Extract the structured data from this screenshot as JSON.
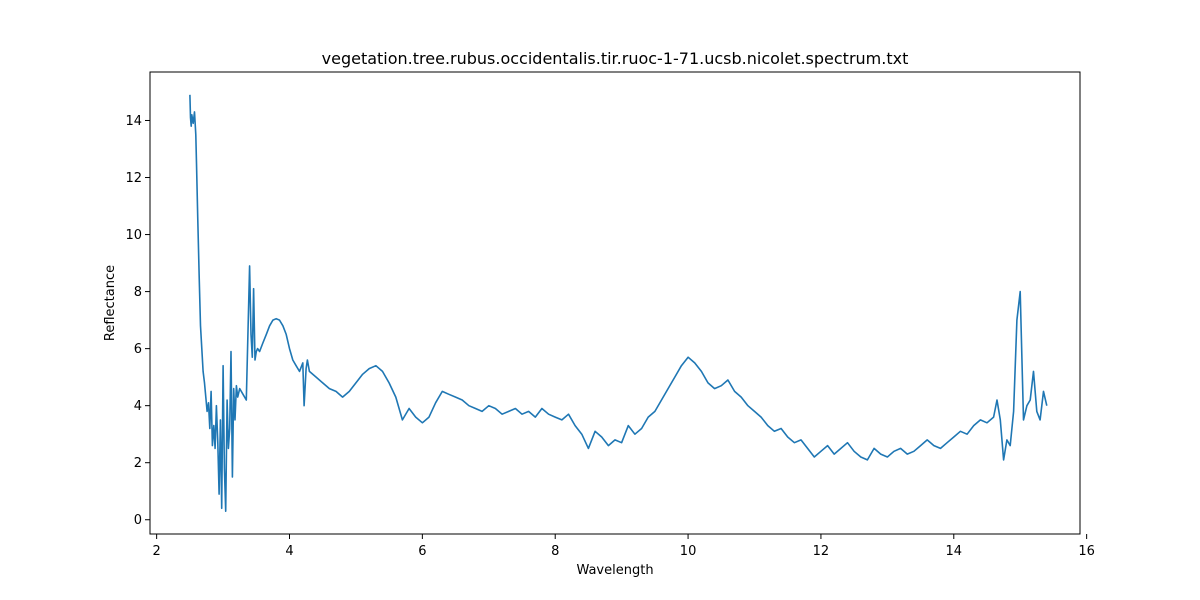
{
  "chart_data": {
    "type": "line",
    "title": "vegetation.tree.rubus.occidentalis.tir.ruoc-1-71.ucsb.nicolet.spectrum.txt",
    "xlabel": "Wavelength",
    "ylabel": "Reflectance",
    "xlim": [
      1.9,
      15.9
    ],
    "ylim": [
      -0.5,
      15.7
    ],
    "xticks": [
      2,
      4,
      6,
      8,
      10,
      12,
      14,
      16
    ],
    "yticks": [
      0,
      2,
      4,
      6,
      8,
      10,
      12,
      14
    ],
    "grid": false,
    "series": [
      {
        "color": "#1f77b4",
        "x": [
          2.5,
          2.51,
          2.52,
          2.53,
          2.55,
          2.57,
          2.59,
          2.6,
          2.62,
          2.64,
          2.66,
          2.68,
          2.7,
          2.72,
          2.74,
          2.76,
          2.78,
          2.8,
          2.82,
          2.84,
          2.86,
          2.88,
          2.9,
          2.92,
          2.94,
          2.96,
          2.98,
          3.0,
          3.02,
          3.04,
          3.06,
          3.08,
          3.1,
          3.12,
          3.14,
          3.16,
          3.18,
          3.2,
          3.22,
          3.25,
          3.3,
          3.35,
          3.4,
          3.42,
          3.44,
          3.46,
          3.48,
          3.5,
          3.52,
          3.55,
          3.6,
          3.65,
          3.7,
          3.75,
          3.8,
          3.85,
          3.9,
          3.95,
          4.0,
          4.05,
          4.1,
          4.15,
          4.2,
          4.22,
          4.25,
          4.27,
          4.3,
          4.4,
          4.5,
          4.6,
          4.7,
          4.8,
          4.9,
          5.0,
          5.1,
          5.2,
          5.3,
          5.4,
          5.5,
          5.6,
          5.7,
          5.8,
          5.9,
          6.0,
          6.1,
          6.2,
          6.3,
          6.4,
          6.5,
          6.6,
          6.7,
          6.8,
          6.9,
          7.0,
          7.1,
          7.2,
          7.3,
          7.4,
          7.5,
          7.6,
          7.7,
          7.8,
          7.9,
          8.0,
          8.1,
          8.2,
          8.3,
          8.4,
          8.5,
          8.6,
          8.7,
          8.8,
          8.9,
          9.0,
          9.1,
          9.2,
          9.3,
          9.4,
          9.5,
          9.6,
          9.7,
          9.8,
          9.9,
          10.0,
          10.1,
          10.2,
          10.3,
          10.4,
          10.5,
          10.6,
          10.7,
          10.8,
          10.9,
          11.0,
          11.1,
          11.2,
          11.3,
          11.4,
          11.5,
          11.6,
          11.7,
          11.8,
          11.9,
          12.0,
          12.1,
          12.2,
          12.3,
          12.4,
          12.5,
          12.6,
          12.7,
          12.8,
          12.9,
          13.0,
          13.1,
          13.2,
          13.3,
          13.4,
          13.5,
          13.6,
          13.7,
          13.8,
          13.9,
          14.0,
          14.1,
          14.2,
          14.3,
          14.4,
          14.5,
          14.6,
          14.65,
          14.7,
          14.75,
          14.8,
          14.85,
          14.9,
          14.95,
          15.0,
          15.05,
          15.1,
          15.15,
          15.2,
          15.25,
          15.3,
          15.35,
          15.4
        ],
        "y": [
          14.9,
          14.1,
          13.8,
          14.2,
          13.9,
          14.3,
          13.5,
          12.5,
          10.5,
          8.5,
          6.8,
          6.0,
          5.2,
          4.8,
          4.3,
          3.8,
          4.1,
          3.2,
          4.5,
          2.6,
          3.3,
          2.5,
          4.0,
          2.7,
          0.9,
          3.5,
          0.4,
          5.4,
          1.8,
          0.3,
          4.2,
          2.5,
          3.2,
          5.9,
          1.5,
          4.6,
          3.5,
          4.7,
          4.3,
          4.6,
          4.4,
          4.2,
          8.9,
          6.5,
          5.7,
          8.1,
          5.6,
          5.9,
          6.0,
          5.9,
          6.2,
          6.5,
          6.8,
          7.0,
          7.05,
          7.0,
          6.8,
          6.5,
          6.0,
          5.6,
          5.4,
          5.2,
          5.5,
          4.0,
          5.3,
          5.6,
          5.2,
          5.0,
          4.8,
          4.6,
          4.5,
          4.3,
          4.5,
          4.8,
          5.1,
          5.3,
          5.4,
          5.2,
          4.8,
          4.3,
          3.5,
          3.9,
          3.6,
          3.4,
          3.6,
          4.1,
          4.5,
          4.4,
          4.3,
          4.2,
          4.0,
          3.9,
          3.8,
          4.0,
          3.9,
          3.7,
          3.8,
          3.9,
          3.7,
          3.8,
          3.6,
          3.9,
          3.7,
          3.6,
          3.5,
          3.7,
          3.3,
          3.0,
          2.5,
          3.1,
          2.9,
          2.6,
          2.8,
          2.7,
          3.3,
          3.0,
          3.2,
          3.6,
          3.8,
          4.2,
          4.6,
          5.0,
          5.4,
          5.7,
          5.5,
          5.2,
          4.8,
          4.6,
          4.7,
          4.9,
          4.5,
          4.3,
          4.0,
          3.8,
          3.6,
          3.3,
          3.1,
          3.2,
          2.9,
          2.7,
          2.8,
          2.5,
          2.2,
          2.4,
          2.6,
          2.3,
          2.5,
          2.7,
          2.4,
          2.2,
          2.1,
          2.5,
          2.3,
          2.2,
          2.4,
          2.5,
          2.3,
          2.4,
          2.6,
          2.8,
          2.6,
          2.5,
          2.7,
          2.9,
          3.1,
          3.0,
          3.3,
          3.5,
          3.4,
          3.6,
          4.2,
          3.5,
          2.1,
          2.8,
          2.6,
          3.8,
          7.0,
          8.0,
          3.5,
          4.0,
          4.2,
          5.2,
          3.8,
          3.5,
          4.5,
          4.0
        ]
      }
    ]
  }
}
